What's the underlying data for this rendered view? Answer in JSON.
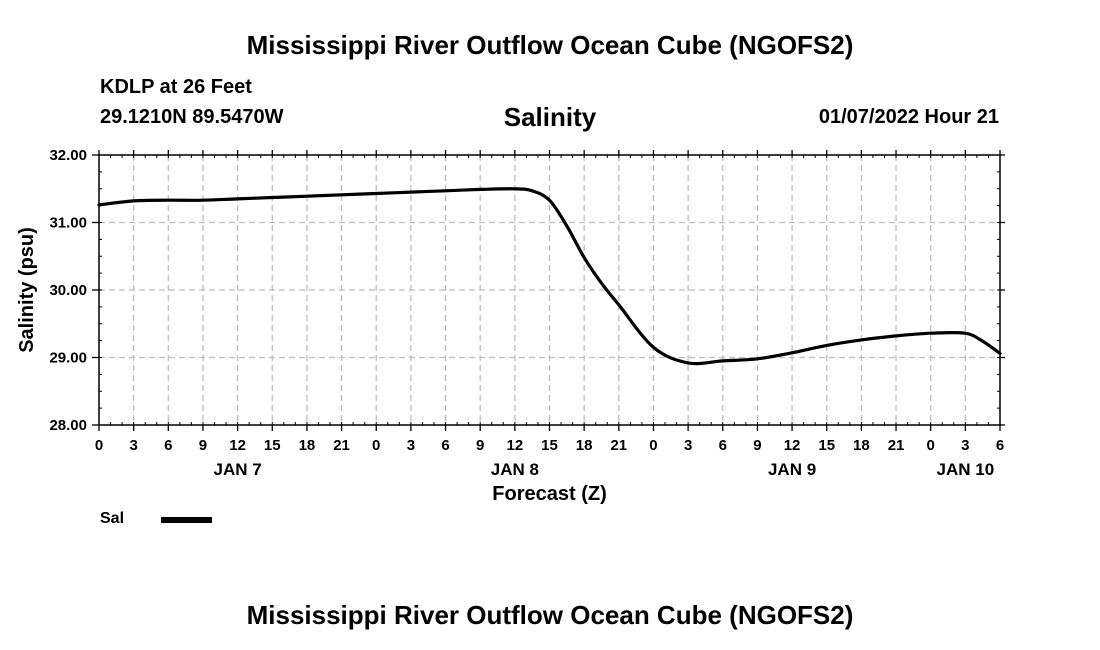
{
  "header": {
    "title": "Mississippi River Outflow Ocean Cube (NGOFS2)",
    "station": "KDLP at 26 Feet",
    "coords": "29.1210N  89.5470W",
    "datetime": "01/07/2022 Hour 21"
  },
  "footer": {
    "title": "Mississippi River Outflow Ocean Cube (NGOFS2)"
  },
  "legend": {
    "label": "Sal",
    "color": "#000000"
  },
  "chart_data": {
    "type": "line",
    "title": "Salinity",
    "xlabel": "Forecast (Z)",
    "ylabel": "Salinity (psu)",
    "ylim": [
      28.0,
      32.0
    ],
    "yticks": [
      "28.00",
      "29.00",
      "30.00",
      "31.00",
      "32.00"
    ],
    "xlim": [
      0,
      78
    ],
    "xtick_hours": [
      0,
      3,
      6,
      9,
      12,
      15,
      18,
      21,
      24,
      27,
      30,
      33,
      36,
      39,
      42,
      45,
      48,
      51,
      54,
      57,
      60,
      63,
      66,
      69,
      72,
      75,
      78
    ],
    "xtick_labels": [
      "0",
      "3",
      "6",
      "9",
      "12",
      "15",
      "18",
      "21",
      "0",
      "3",
      "6",
      "9",
      "12",
      "15",
      "18",
      "21",
      "0",
      "3",
      "6",
      "9",
      "12",
      "15",
      "18",
      "21",
      "0",
      "3",
      "6"
    ],
    "day_labels": [
      {
        "label": "JAN 7",
        "hour": 12
      },
      {
        "label": "JAN 8",
        "hour": 36
      },
      {
        "label": "JAN 9",
        "hour": 60
      },
      {
        "label": "JAN 10",
        "hour": 75
      }
    ],
    "grid": true,
    "series": [
      {
        "name": "Sal",
        "color": "#000000",
        "x": [
          0,
          3,
          6,
          9,
          12,
          15,
          18,
          21,
          24,
          27,
          30,
          33,
          36,
          37.5,
          39,
          40.5,
          42,
          43.5,
          45,
          48,
          51,
          54,
          57,
          60,
          63,
          66,
          69,
          72,
          75,
          76.5,
          78
        ],
        "y": [
          31.26,
          31.32,
          31.33,
          31.33,
          31.35,
          31.37,
          31.39,
          31.41,
          31.43,
          31.45,
          31.47,
          31.49,
          31.5,
          31.47,
          31.33,
          30.95,
          30.48,
          30.1,
          29.78,
          29.15,
          28.92,
          28.95,
          28.98,
          29.07,
          29.18,
          29.26,
          29.32,
          29.36,
          29.36,
          29.24,
          29.06
        ]
      }
    ]
  }
}
